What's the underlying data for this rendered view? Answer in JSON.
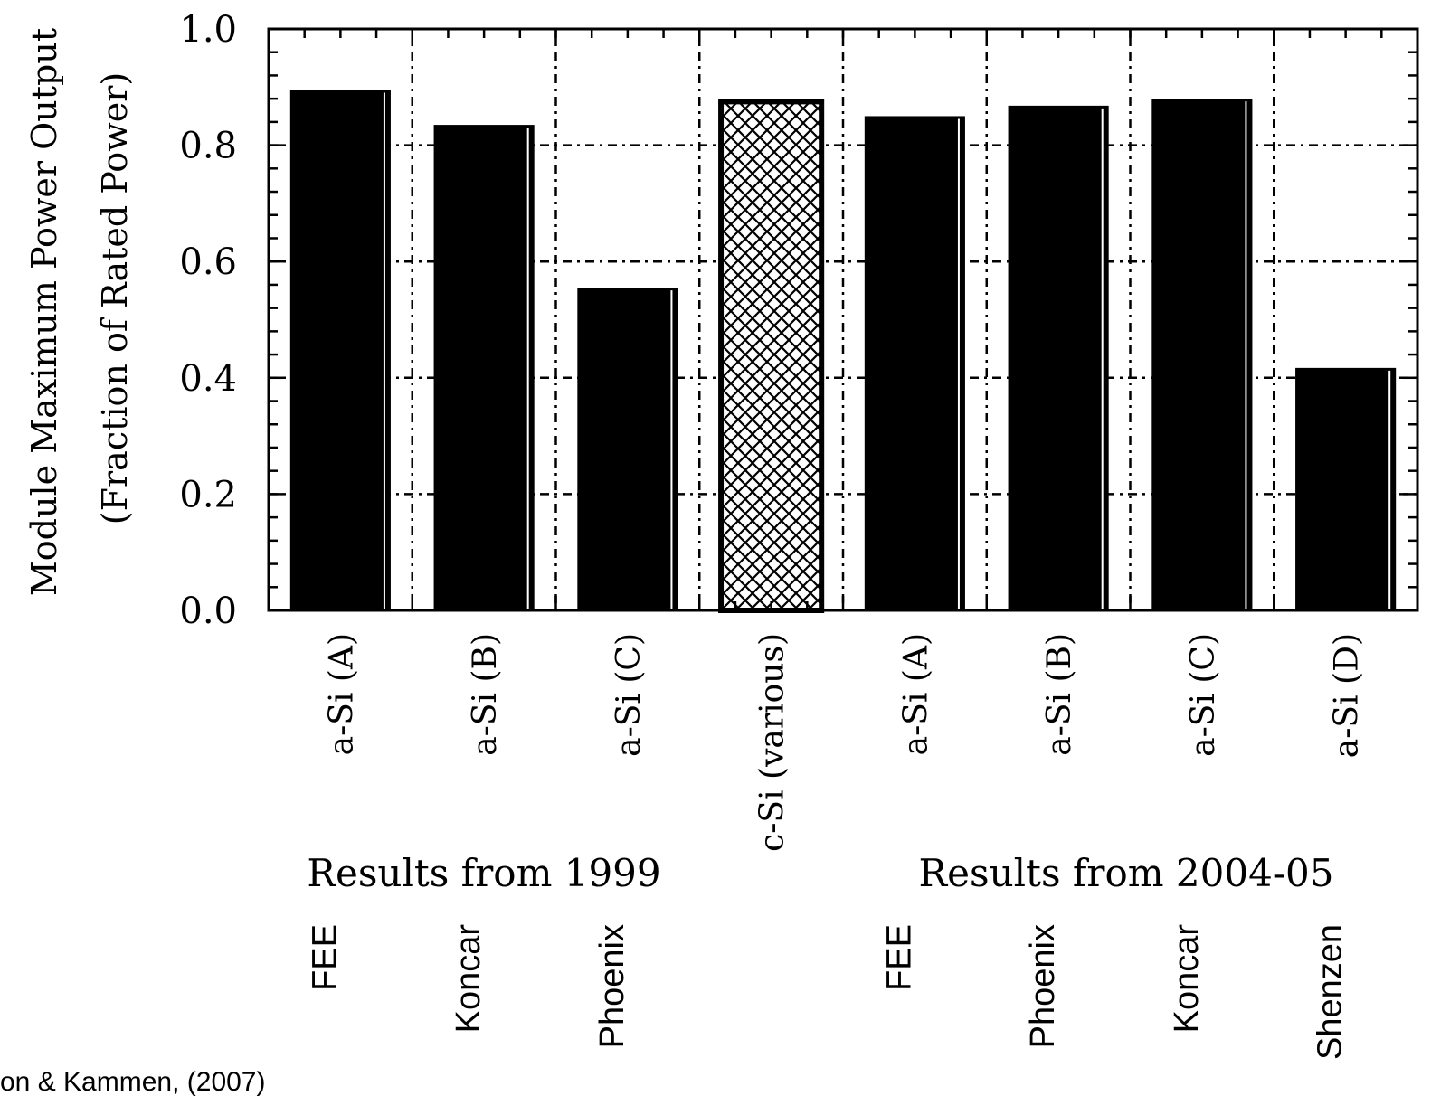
{
  "chart_data": {
    "type": "bar",
    "ylabel_line1": "Module Maximum Power Output",
    "ylabel_line2": "(Fraction of Rated Power)",
    "ylim": [
      0,
      1.0
    ],
    "yticks": [
      "0.0",
      "0.2",
      "0.4",
      "0.6",
      "0.8",
      "1.0"
    ],
    "grid": true,
    "categories": [
      "a-Si (A)",
      "a-Si (B)",
      "a-Si (C)",
      "c-Si (various)",
      "a-Si (A)",
      "a-Si (B)",
      "a-Si (C)",
      "a-Si (D)"
    ],
    "values": [
      0.895,
      0.835,
      0.555,
      0.875,
      0.85,
      0.868,
      0.88,
      0.417
    ],
    "patterns": [
      "solid",
      "solid",
      "solid",
      "crosshatch",
      "solid",
      "solid",
      "solid",
      "solid"
    ],
    "group_labels": [
      "Results from 1999",
      "Results from 2004-05"
    ],
    "manufacturers": [
      "FEE",
      "Koncar",
      "Phoenix",
      "",
      "FEE",
      "Phoenix",
      "Koncar",
      "Shenzen"
    ]
  },
  "citation": "on & Kammen, (2007)",
  "colors": {
    "bar": "#000000",
    "background": "#ffffff",
    "grid": "#000000"
  }
}
